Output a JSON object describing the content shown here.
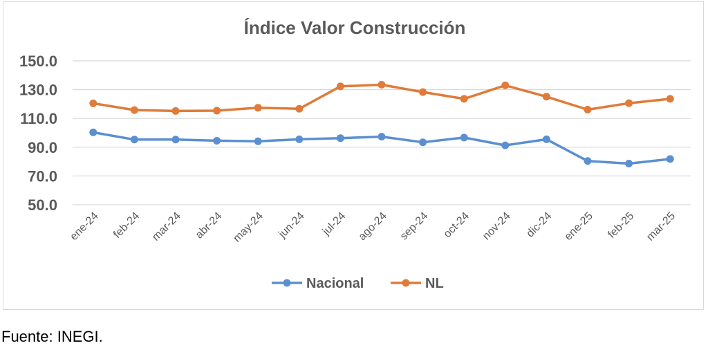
{
  "chart_data": {
    "type": "line",
    "title": "Índice Valor Construcción",
    "categories": [
      "ene-24",
      "feb-24",
      "mar-24",
      "abr-24",
      "may-24",
      "jun-24",
      "jul-24",
      "ago-24",
      "sep-24",
      "oct-24",
      "nov-24",
      "dic-24",
      "ene-25",
      "feb-25",
      "mar-25"
    ],
    "series": [
      {
        "name": "Nacional",
        "color": "#5b8fd1",
        "values": [
          100.3,
          95.3,
          95.3,
          94.5,
          94.1,
          95.5,
          96.3,
          97.3,
          93.4,
          96.7,
          91.3,
          95.5,
          80.4,
          78.6,
          81.8
        ]
      },
      {
        "name": "NL",
        "color": "#e07b39",
        "values": [
          120.5,
          115.8,
          115.2,
          115.4,
          117.4,
          116.7,
          132.3,
          133.4,
          128.3,
          123.6,
          133.0,
          125.1,
          116.1,
          120.6,
          123.6
        ]
      }
    ],
    "yticks": [
      "150.0",
      "130.0",
      "110.0",
      "90.0",
      "70.0",
      "50.0"
    ],
    "ylim": [
      50,
      150
    ],
    "grid": true,
    "legend": "bottom"
  },
  "source_note": "Fuente: INEGI."
}
